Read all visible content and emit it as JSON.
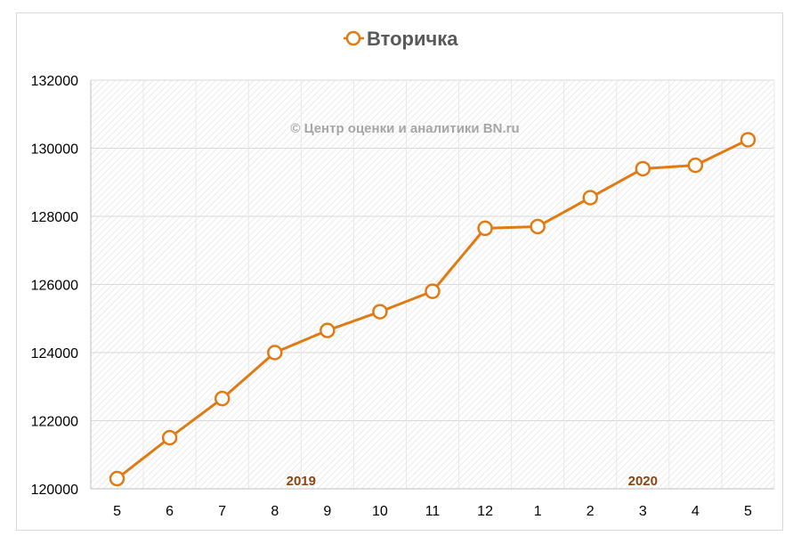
{
  "chart_data": {
    "type": "line",
    "title": "Вторичка",
    "legend": {
      "entries": [
        "Вторичка"
      ],
      "placement": "top"
    },
    "watermark": "© Центр оценки и аналитики BN.ru",
    "categories": [
      "5",
      "6",
      "7",
      "8",
      "9",
      "10",
      "11",
      "12",
      "1",
      "2",
      "3",
      "4",
      "5"
    ],
    "year_labels": [
      {
        "text": "2019",
        "category_index": 3.5
      },
      {
        "text": "2020",
        "category_index": 10
      }
    ],
    "series": [
      {
        "name": "Вторичка",
        "color": "#e07b14",
        "values": [
          120300,
          121500,
          122650,
          124000,
          124650,
          125200,
          125800,
          127650,
          127700,
          128550,
          129400,
          129500,
          130250
        ]
      }
    ],
    "ylim": [
      120000,
      132000
    ],
    "yticks": [
      120000,
      122000,
      124000,
      126000,
      128000,
      130000,
      132000
    ],
    "grid": true,
    "xlabel": "",
    "ylabel": ""
  }
}
